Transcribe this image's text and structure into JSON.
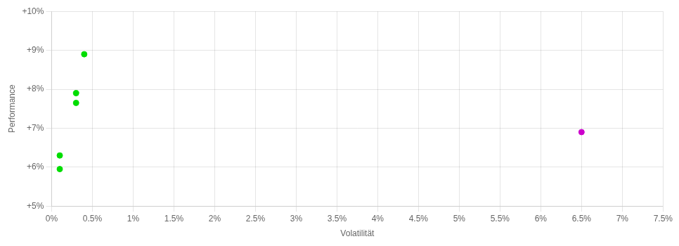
{
  "chart_data": {
    "type": "scatter",
    "xlabel": "Volatilität",
    "ylabel": "Performance",
    "xlim": [
      0,
      0.075
    ],
    "ylim": [
      0.05,
      0.1
    ],
    "xticks": [
      {
        "value": 0.0,
        "label": "0%"
      },
      {
        "value": 0.005,
        "label": "0.5%"
      },
      {
        "value": 0.01,
        "label": "1%"
      },
      {
        "value": 0.015,
        "label": "1.5%"
      },
      {
        "value": 0.02,
        "label": "2%"
      },
      {
        "value": 0.025,
        "label": "2.5%"
      },
      {
        "value": 0.03,
        "label": "3%"
      },
      {
        "value": 0.035,
        "label": "3.5%"
      },
      {
        "value": 0.04,
        "label": "4%"
      },
      {
        "value": 0.045,
        "label": "4.5%"
      },
      {
        "value": 0.05,
        "label": "5%"
      },
      {
        "value": 0.055,
        "label": "5.5%"
      },
      {
        "value": 0.06,
        "label": "6%"
      },
      {
        "value": 0.065,
        "label": "6.5%"
      },
      {
        "value": 0.07,
        "label": "7%"
      },
      {
        "value": 0.075,
        "label": "7.5%"
      }
    ],
    "yticks": [
      {
        "value": 0.05,
        "label": "+5%"
      },
      {
        "value": 0.06,
        "label": "+6%"
      },
      {
        "value": 0.07,
        "label": "+7%"
      },
      {
        "value": 0.08,
        "label": "+8%"
      },
      {
        "value": 0.09,
        "label": "+9%"
      },
      {
        "value": 0.1,
        "label": "+10%"
      }
    ],
    "grid": true,
    "series": [
      {
        "color": "#00dd00",
        "x": [
          0.004,
          0.003,
          0.003,
          0.001,
          0.001
        ],
        "values": [
          0.089,
          0.079,
          0.0765,
          0.063,
          0.0595
        ]
      },
      {
        "color": "#cc00cc",
        "x": [
          0.065
        ],
        "values": [
          0.069
        ]
      }
    ]
  }
}
